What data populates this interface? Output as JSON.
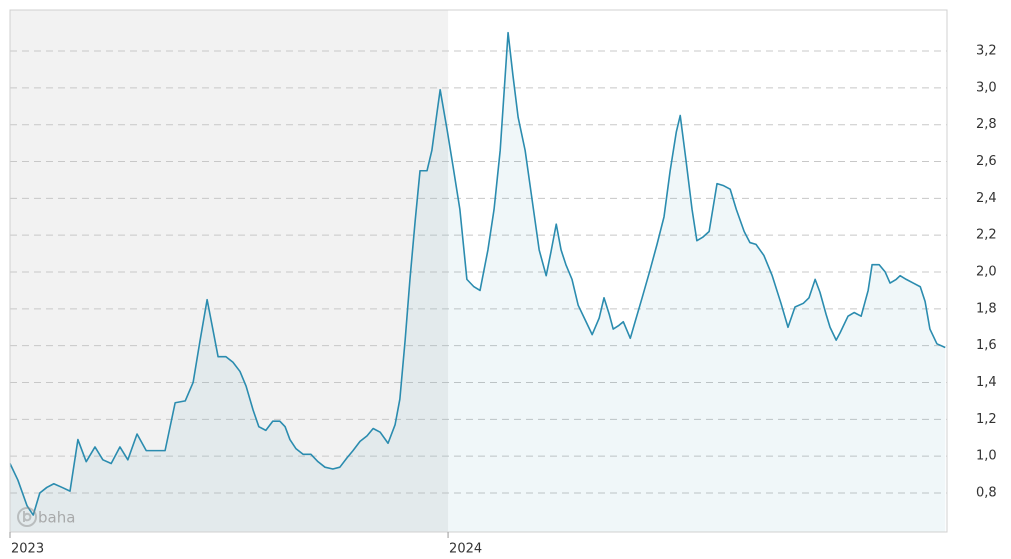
{
  "chart_data": {
    "type": "line",
    "watermark": "baha",
    "x": [
      2023.0,
      2023.018,
      2023.039,
      2023.053,
      2023.068,
      2023.084,
      2023.1,
      2023.119,
      2023.137,
      2023.155,
      2023.174,
      2023.194,
      2023.212,
      2023.231,
      2023.251,
      2023.269,
      2023.29,
      2023.311,
      2023.331,
      2023.354,
      2023.377,
      2023.4,
      2023.418,
      2023.434,
      2023.45,
      2023.463,
      2023.475,
      2023.493,
      2023.509,
      2023.525,
      2023.539,
      2023.555,
      2023.568,
      2023.584,
      2023.6,
      2023.616,
      2023.628,
      2023.639,
      2023.653,
      2023.669,
      2023.687,
      2023.703,
      2023.719,
      2023.737,
      2023.753,
      2023.769,
      2023.783,
      2023.799,
      2023.815,
      2023.829,
      2023.845,
      2023.863,
      2023.879,
      2023.89,
      2023.902,
      2023.913,
      2023.925,
      2023.936,
      2023.952,
      2023.963,
      2023.975,
      2023.982,
      2023.998,
      2024.011,
      2024.027,
      2024.043,
      2024.059,
      2024.073,
      2024.091,
      2024.105,
      2024.119,
      2024.137,
      2024.148,
      2024.16,
      2024.176,
      2024.192,
      2024.208,
      2024.224,
      2024.235,
      2024.247,
      2024.258,
      2024.269,
      2024.283,
      2024.297,
      2024.313,
      2024.329,
      2024.345,
      2024.356,
      2024.368,
      2024.377,
      2024.39,
      2024.4,
      2024.416,
      2024.427,
      2024.443,
      2024.461,
      2024.477,
      2024.493,
      2024.507,
      2024.521,
      2024.53,
      2024.543,
      2024.557,
      2024.568,
      2024.582,
      2024.596,
      2024.614,
      2024.628,
      2024.644,
      2024.658,
      2024.676,
      2024.689,
      2024.703,
      2024.721,
      2024.74,
      2024.76,
      2024.776,
      2024.792,
      2024.811,
      2024.824,
      2024.838,
      2024.849,
      2024.863,
      2024.872,
      2024.886,
      2024.895,
      2024.913,
      2024.927,
      2024.943,
      2024.959,
      2024.968,
      2024.984,
      2024.998,
      2025.009,
      2025.023,
      2025.032,
      2025.046,
      2025.062,
      2025.078,
      2025.089,
      2025.1,
      2025.116,
      2025.135
    ],
    "series": [
      {
        "color": "#2b8caf",
        "values": [
          0.96,
          0.87,
          0.73,
          0.68,
          0.8,
          0.83,
          0.85,
          0.83,
          0.81,
          1.09,
          0.97,
          1.05,
          0.98,
          0.96,
          1.05,
          0.98,
          1.12,
          1.03,
          1.03,
          1.03,
          1.29,
          1.3,
          1.4,
          1.63,
          1.85,
          1.69,
          1.54,
          1.54,
          1.51,
          1.46,
          1.38,
          1.25,
          1.16,
          1.14,
          1.19,
          1.19,
          1.16,
          1.09,
          1.04,
          1.01,
          1.01,
          0.97,
          0.94,
          0.93,
          0.94,
          0.99,
          1.03,
          1.08,
          1.11,
          1.15,
          1.13,
          1.07,
          1.17,
          1.31,
          1.63,
          1.96,
          2.28,
          2.55,
          2.55,
          2.66,
          2.87,
          2.99,
          2.77,
          2.58,
          2.34,
          1.96,
          1.92,
          1.9,
          2.12,
          2.34,
          2.66,
          3.3,
          3.07,
          2.84,
          2.66,
          2.39,
          2.12,
          1.98,
          2.11,
          2.26,
          2.12,
          2.04,
          1.96,
          1.82,
          1.74,
          1.66,
          1.75,
          1.86,
          1.77,
          1.69,
          1.71,
          1.73,
          1.64,
          1.73,
          1.86,
          2.01,
          2.15,
          2.3,
          2.55,
          2.76,
          2.85,
          2.61,
          2.34,
          2.17,
          2.19,
          2.22,
          2.48,
          2.47,
          2.45,
          2.34,
          2.22,
          2.16,
          2.15,
          2.09,
          1.98,
          1.83,
          1.7,
          1.81,
          1.83,
          1.86,
          1.96,
          1.89,
          1.77,
          1.7,
          1.63,
          1.67,
          1.76,
          1.78,
          1.76,
          1.9,
          2.04,
          2.04,
          2.0,
          1.94,
          1.96,
          1.98,
          1.96,
          1.94,
          1.92,
          1.84,
          1.69,
          1.61,
          1.59
        ]
      }
    ],
    "xlim": [
      2023,
      2025.139
    ],
    "xticks": [
      2023,
      2024
    ],
    "ylim": [
      0.588,
      3.423
    ],
    "yticks": [
      {
        "value": 0.8,
        "label": "0,8"
      },
      {
        "value": 1.0,
        "label": "1,0"
      },
      {
        "value": 1.2,
        "label": "1,2"
      },
      {
        "value": 1.4,
        "label": "1,4"
      },
      {
        "value": 1.6,
        "label": "1,6"
      },
      {
        "value": 1.8,
        "label": "1,8"
      },
      {
        "value": 2.0,
        "label": "2,0"
      },
      {
        "value": 2.2,
        "label": "2,2"
      },
      {
        "value": 2.4,
        "label": "2,4"
      },
      {
        "value": 2.6,
        "label": "2,6"
      },
      {
        "value": 2.8,
        "label": "2,8"
      },
      {
        "value": 3.0,
        "label": "3,0"
      },
      {
        "value": 3.2,
        "label": "3,2"
      }
    ],
    "grid": true,
    "y_axis_side": "right"
  }
}
